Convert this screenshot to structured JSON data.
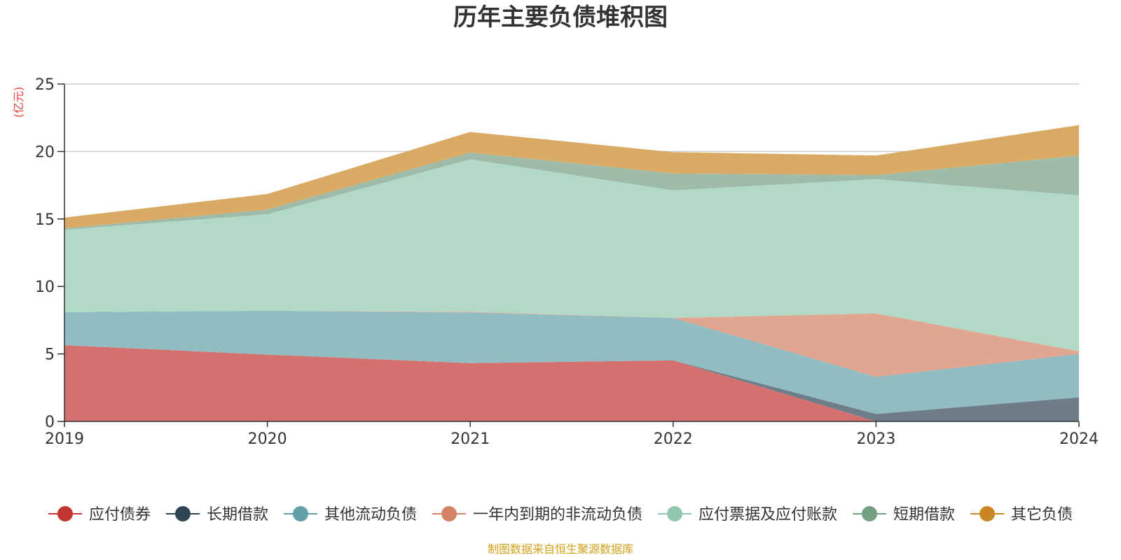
{
  "chart_data": {
    "type": "area",
    "stacked": true,
    "title": "历年主要负债堆积图",
    "ylabel": "(亿元)",
    "xlabel": "",
    "categories": [
      "2019",
      "2020",
      "2021",
      "2022",
      "2023",
      "2024"
    ],
    "ylim": [
      0,
      25
    ],
    "yticks": [
      "0",
      "5",
      "10",
      "15",
      "20",
      "25"
    ],
    "grid": true,
    "legend_position": "bottom",
    "series": [
      {
        "name": "应付债券",
        "color": "#c23531",
        "area_color": "#d4706e",
        "values": [
          5.65,
          4.95,
          4.32,
          4.52,
          0.0,
          0.0
        ]
      },
      {
        "name": "长期借款",
        "color": "#2f4554",
        "area_color": "#6e7d88",
        "values": [
          0.0,
          0.0,
          0.0,
          0.0,
          0.55,
          1.78
        ]
      },
      {
        "name": "其他流动负债",
        "color": "#61a0a8",
        "area_color": "#91bcc2",
        "values": [
          2.45,
          3.25,
          3.75,
          3.15,
          2.75,
          3.22
        ]
      },
      {
        "name": "一年内到期的非流动负债",
        "color": "#d48265",
        "area_color": "#e1a692",
        "values": [
          0.0,
          0.0,
          0.05,
          0.0,
          4.7,
          0.2
        ]
      },
      {
        "name": "应付票据及应付账款",
        "color": "#91c7ae",
        "area_color": "#b2d9c6",
        "values": [
          6.1,
          7.15,
          11.3,
          9.45,
          9.95,
          11.55
        ]
      },
      {
        "name": "短期借款",
        "color": "#749f83",
        "area_color": "#9dbba8",
        "values": [
          0.1,
          0.35,
          0.5,
          1.25,
          0.3,
          2.95
        ]
      },
      {
        "name": "其它负债",
        "color": "#ca8622",
        "area_color": "#d9aa64",
        "values": [
          0.8,
          1.15,
          1.53,
          1.58,
          1.45,
          2.25
        ]
      }
    ]
  },
  "source_text": "制图数据来自恒生聚源数据库",
  "colors": {
    "text": "#333333",
    "unit": "#e8413c",
    "source": "#d4a017",
    "grid": "#cccccc",
    "axis": "#333333"
  }
}
